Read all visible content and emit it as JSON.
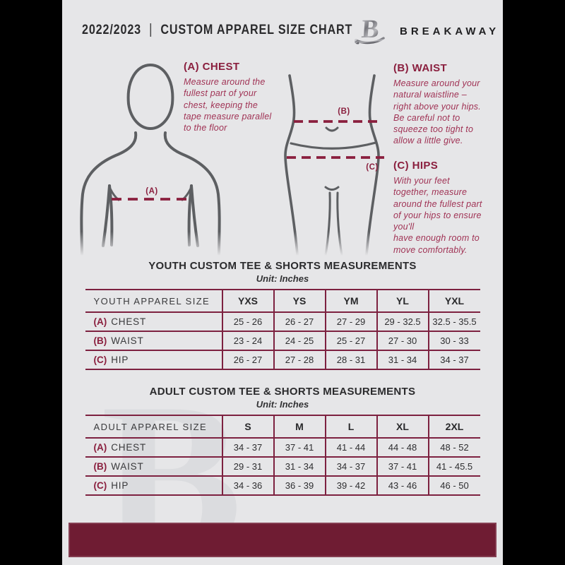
{
  "page": {
    "header": {
      "year": "2022/2023",
      "divider": "|",
      "title": "CUSTOM APPAREL SIZE CHART",
      "brand": "BREAKAWAY",
      "logo_letter": "B"
    },
    "colors": {
      "page_background": "#e6e6e8",
      "maroon_accent": "#8a1f3e",
      "table_border": "#7d2140",
      "footer_bar": "#6f1c33",
      "body_outline_gray": "#5d5f62"
    },
    "guide": {
      "marker_a": "(A)",
      "marker_b": "(B)",
      "marker_c": "(C)",
      "sections": [
        {
          "heading": "(A) CHEST",
          "body": "Measure around the\nfullest part of your\nchest, keeping the\ntape measure parallel\nto the floor"
        },
        {
          "heading": "(B) WAIST",
          "body": "Measure around your\nnatural waistline –\nright above your hips.\nBe careful not to\nsqueeze too tight to\nallow a little give."
        },
        {
          "heading": "(C) HIPS",
          "body": "With your feet\ntogether, measure\naround the fullest part\nof your hips to ensure\nyou'll\nhave enough room to\nmove comfortably."
        }
      ]
    },
    "tables": [
      {
        "title": "YOUTH CUSTOM TEE & SHORTS MEASUREMENTS",
        "unit": "Unit: Inches",
        "size_header": "YOUTH APPAREL SIZE",
        "sizes": [
          "YXS",
          "YS",
          "YM",
          "YL",
          "YXL"
        ],
        "rows": [
          {
            "prefix": "(A)",
            "label": "CHEST",
            "values": [
              "25 - 26",
              "26 - 27",
              "27 - 29",
              "29 - 32.5",
              "32.5 - 35.5"
            ]
          },
          {
            "prefix": "(B)",
            "label": "WAIST",
            "values": [
              "23 - 24",
              "24 - 25",
              "25 - 27",
              "27 - 30",
              "30 - 33"
            ]
          },
          {
            "prefix": "(C)",
            "label": "HIP",
            "values": [
              "26 - 27",
              "27 - 28",
              "28 - 31",
              "31 - 34",
              "34 - 37"
            ]
          }
        ]
      },
      {
        "title": "ADULT CUSTOM TEE & SHORTS MEASUREMENTS",
        "unit": "Unit: Inches",
        "size_header": "ADULT APPAREL SIZE",
        "sizes": [
          "S",
          "M",
          "L",
          "XL",
          "2XL"
        ],
        "rows": [
          {
            "prefix": "(A)",
            "label": "CHEST",
            "values": [
              "34 - 37",
              "37 - 41",
              "41 - 44",
              "44 - 48",
              "48 - 52"
            ]
          },
          {
            "prefix": "(B)",
            "label": "WAIST",
            "values": [
              "29 - 31",
              "31 - 34",
              "34 - 37",
              "37 - 41",
              "41 - 45.5"
            ]
          },
          {
            "prefix": "(C)",
            "label": "HIP",
            "values": [
              "34 - 36",
              "36 - 39",
              "39 - 42",
              "43 - 46",
              "46 - 50"
            ]
          }
        ]
      }
    ],
    "watermark": "B"
  }
}
